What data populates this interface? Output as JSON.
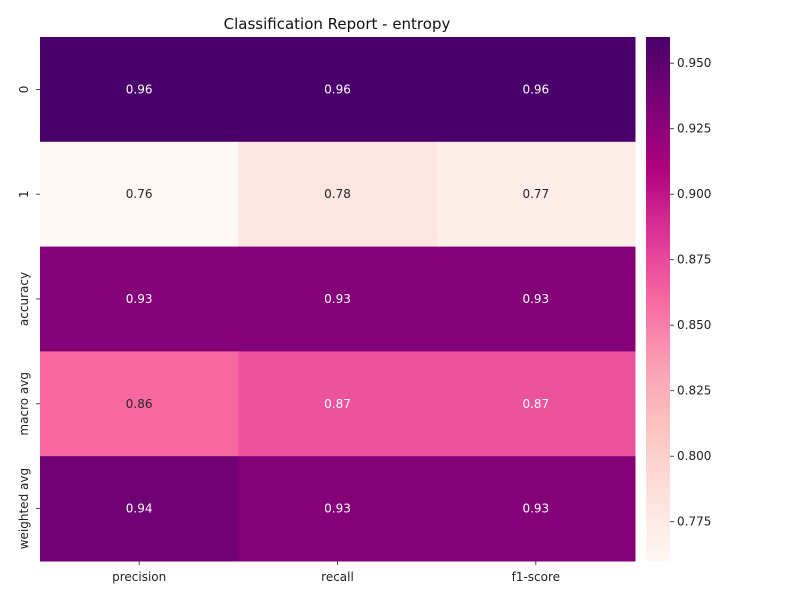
{
  "chart_data": {
    "type": "heatmap",
    "title": "Classification Report - entropy",
    "rows": [
      "0",
      "1",
      "accuracy",
      "macro avg",
      "weighted avg"
    ],
    "columns": [
      "precision",
      "recall",
      "f1-score"
    ],
    "values": [
      [
        0.96,
        0.96,
        0.96
      ],
      [
        0.76,
        0.78,
        0.77
      ],
      [
        0.93,
        0.93,
        0.93
      ],
      [
        0.86,
        0.87,
        0.87
      ],
      [
        0.94,
        0.93,
        0.93
      ]
    ],
    "value_labels": [
      [
        "0.96",
        "0.96",
        "0.96"
      ],
      [
        "0.76",
        "0.78",
        "0.77"
      ],
      [
        "0.93",
        "0.93",
        "0.93"
      ],
      [
        "0.86",
        "0.87",
        "0.87"
      ],
      [
        "0.94",
        "0.93",
        "0.93"
      ]
    ],
    "colorbar": {
      "colormap": "RdPu",
      "vmin": 0.76,
      "vmax": 0.96,
      "ticks": [
        0.775,
        0.8,
        0.825,
        0.85,
        0.875,
        0.9,
        0.925,
        0.95
      ],
      "tick_labels": [
        "0.775",
        "0.800",
        "0.825",
        "0.850",
        "0.875",
        "0.900",
        "0.925",
        "0.950"
      ]
    },
    "colormap_stops": [
      "#fff7f3",
      "#fde0dd",
      "#fcc5c0",
      "#fa9fb5",
      "#f768a1",
      "#dd3497",
      "#ae017e",
      "#7a0177",
      "#49006a"
    ]
  }
}
